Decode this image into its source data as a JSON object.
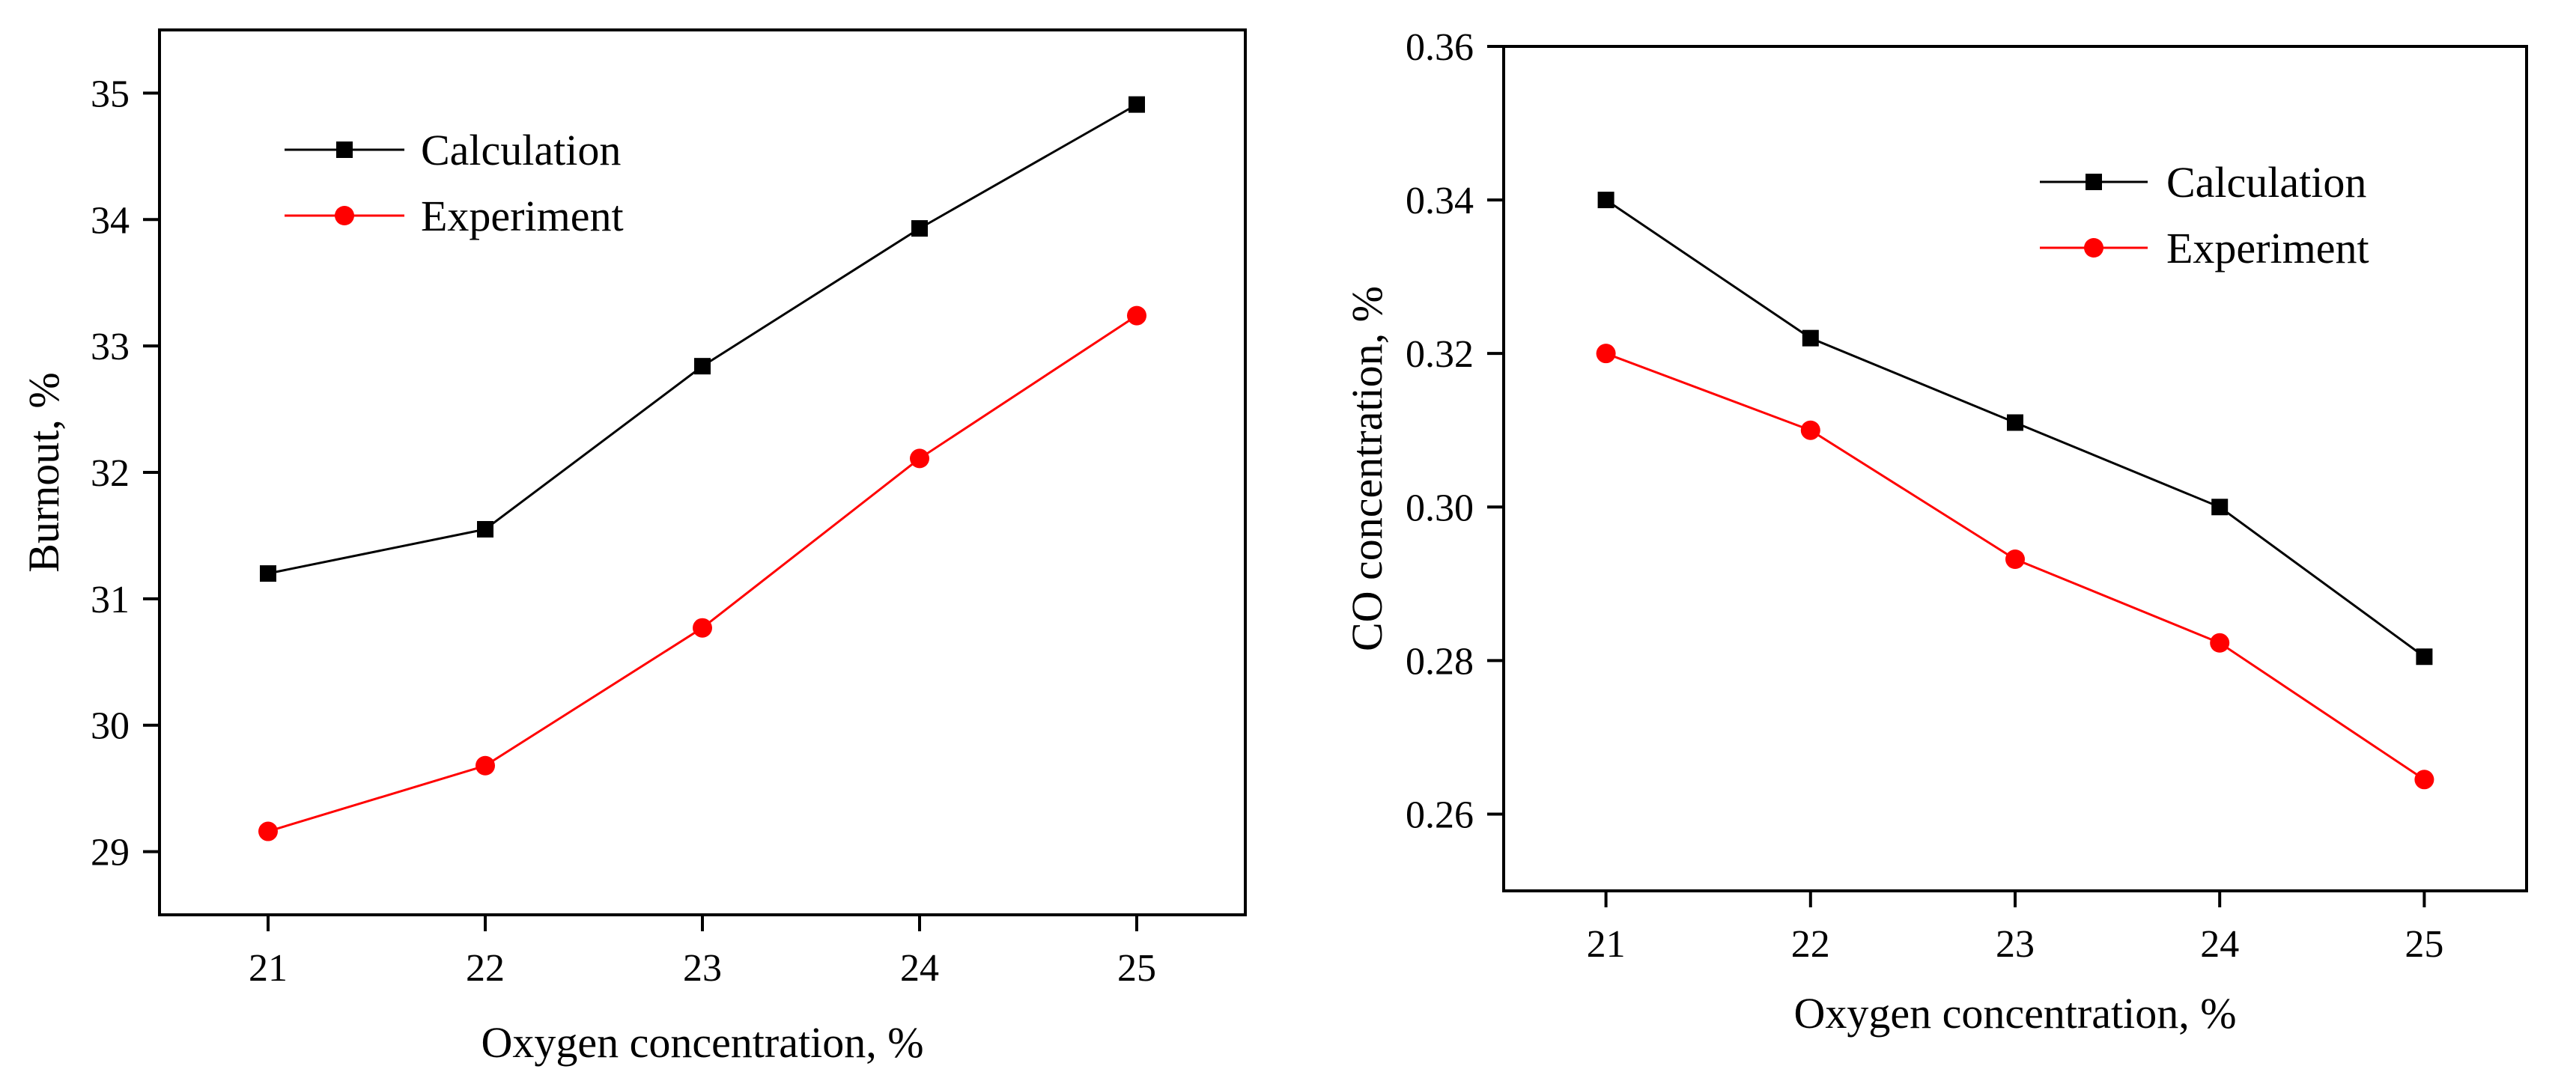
{
  "chart_data": [
    {
      "type": "line",
      "xlabel": "Oxygen concentration, %",
      "ylabel": "Burnout, %",
      "categories": [
        "21",
        "22",
        "23",
        "24",
        "25"
      ],
      "x": [
        21,
        22,
        23,
        24,
        25
      ],
      "xlim": [
        20.5,
        25.5
      ],
      "ylim": [
        28.5,
        35.5
      ],
      "yticks": [
        29,
        30,
        31,
        32,
        33,
        34,
        35
      ],
      "ytick_labels": [
        "29",
        "30",
        "31",
        "32",
        "33",
        "34",
        "35"
      ],
      "legend_position": "top-left",
      "grid": false,
      "series": [
        {
          "name": "Calculation",
          "color": "#000000",
          "marker": "square",
          "values": [
            31.2,
            31.55,
            32.84,
            33.93,
            34.91
          ]
        },
        {
          "name": "Experiment",
          "color": "#ff0000",
          "marker": "circle",
          "values": [
            29.16,
            29.68,
            30.77,
            32.11,
            33.24
          ]
        }
      ]
    },
    {
      "type": "line",
      "xlabel": "Oxygen concentration, %",
      "ylabel": "CO concentration, %",
      "categories": [
        "21",
        "22",
        "23",
        "24",
        "25"
      ],
      "x": [
        21,
        22,
        23,
        24,
        25
      ],
      "xlim": [
        20.5,
        25.5
      ],
      "ylim": [
        0.25,
        0.36
      ],
      "yticks": [
        0.26,
        0.28,
        0.3,
        0.32,
        0.34,
        0.36
      ],
      "ytick_labels": [
        "0.26",
        "0.28",
        "0.30",
        "0.32",
        "0.34",
        "0.36"
      ],
      "legend_position": "top-right",
      "grid": false,
      "series": [
        {
          "name": "Calculation",
          "color": "#000000",
          "marker": "square",
          "values": [
            0.34,
            0.322,
            0.311,
            0.3,
            0.2805
          ]
        },
        {
          "name": "Experiment",
          "color": "#ff0000",
          "marker": "circle",
          "values": [
            0.32,
            0.31,
            0.2932,
            0.2823,
            0.2645
          ]
        }
      ]
    }
  ]
}
